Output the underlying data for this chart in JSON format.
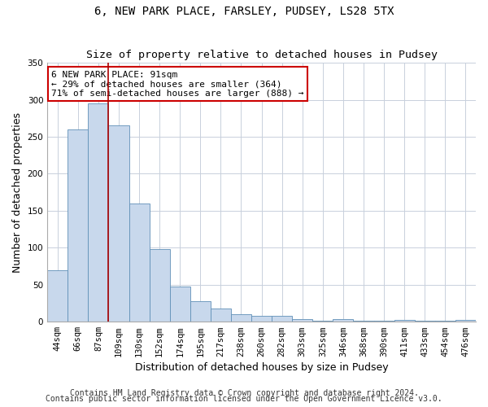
{
  "title": "6, NEW PARK PLACE, FARSLEY, PUDSEY, LS28 5TX",
  "subtitle": "Size of property relative to detached houses in Pudsey",
  "xlabel": "Distribution of detached houses by size in Pudsey",
  "ylabel": "Number of detached properties",
  "bar_labels": [
    "44sqm",
    "66sqm",
    "87sqm",
    "109sqm",
    "130sqm",
    "152sqm",
    "174sqm",
    "195sqm",
    "217sqm",
    "238sqm",
    "260sqm",
    "282sqm",
    "303sqm",
    "325sqm",
    "346sqm",
    "368sqm",
    "390sqm",
    "411sqm",
    "433sqm",
    "454sqm",
    "476sqm"
  ],
  "bar_values": [
    70,
    260,
    295,
    265,
    160,
    98,
    48,
    28,
    18,
    10,
    8,
    8,
    3,
    1,
    3,
    1,
    1,
    2,
    1,
    1,
    2
  ],
  "bar_color": "#c8d8ec",
  "bar_edge_color": "#6090b8",
  "red_line_x": 2.5,
  "annotation_title": "6 NEW PARK PLACE: 91sqm",
  "annotation_line1": "← 29% of detached houses are smaller (364)",
  "annotation_line2": "71% of semi-detached houses are larger (888) →",
  "annotation_box_color": "#ffffff",
  "annotation_box_edge": "#cc0000",
  "vline_color": "#aa0000",
  "ylim": [
    0,
    350
  ],
  "yticks": [
    0,
    50,
    100,
    150,
    200,
    250,
    300,
    350
  ],
  "footer1": "Contains HM Land Registry data © Crown copyright and database right 2024.",
  "footer2": "Contains public sector information licensed under the Open Government Licence v3.0.",
  "bg_color": "#ffffff",
  "grid_color": "#c8d0dc",
  "title_fontsize": 10,
  "subtitle_fontsize": 9.5,
  "axis_label_fontsize": 9,
  "tick_fontsize": 7.5,
  "annotation_fontsize": 8,
  "footer_fontsize": 7
}
